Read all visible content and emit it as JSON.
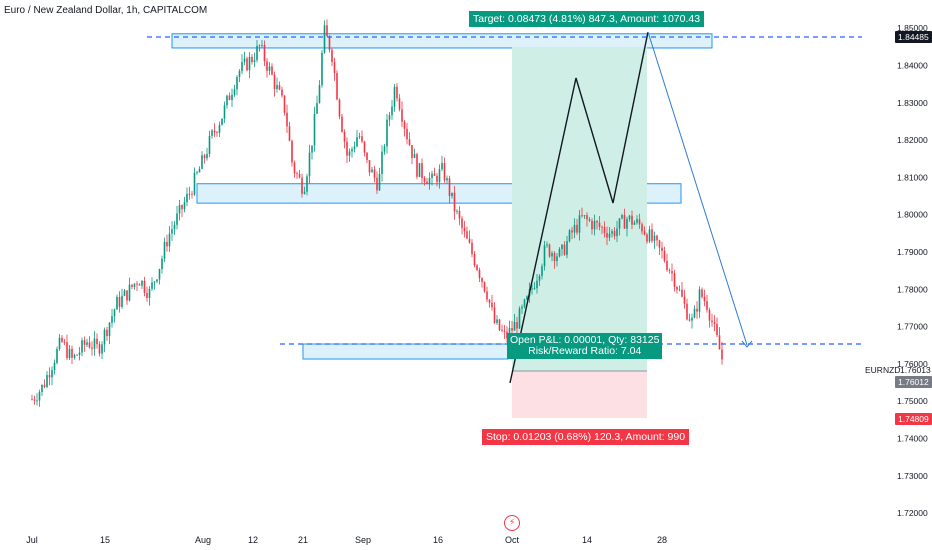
{
  "header": {
    "title": "Euro / New Zealand Dollar, 1h, CAPITALCOM"
  },
  "colors": {
    "up": "#089981",
    "down": "#f23645",
    "zone_fill": "#bfe6f6",
    "zone_stroke": "#2196f3",
    "target_fill": "#cfeee6",
    "stop_fill": "#fde0e3",
    "projection": "#131722",
    "projection2": "#2e7bd6"
  },
  "position": {
    "target_label": "Target: 0.08473 (4.81%) 847.3, Amount: 1070.43",
    "open_label_1": "Open P&L: 0.00001, Qty: 83125",
    "open_label_2": "Risk/Reward Ratio: 7.04",
    "stop_label": "Stop: 0.01203 (0.68%) 120.3, Amount: 990",
    "entry": 1.76012,
    "target": 1.84485,
    "stop": 1.74809
  },
  "axis_labels": {
    "price_1": "1.84485",
    "symbol": "EURNZD",
    "price_2": "1.76013",
    "price_3": "1.76012",
    "price_4": "1.74809"
  },
  "watermark_icon": "tradingview-logo-icon",
  "chart_data": {
    "type": "line",
    "title": "Euro / New Zealand Dollar, 1h, CAPITALCOM",
    "symbol": "EURNZD",
    "ylim": [
      1.716,
      1.853
    ],
    "y_ticks": [
      1.72,
      1.73,
      1.74,
      1.75,
      1.76,
      1.77,
      1.78,
      1.79,
      1.8,
      1.81,
      1.82,
      1.83,
      1.84,
      1.85
    ],
    "x_ticks": [
      "Jul",
      "15",
      "Aug",
      "12",
      "21",
      "Sep",
      "16",
      "Oct",
      "14",
      "28"
    ],
    "grid": false,
    "series": [
      {
        "values": [
          [
            0,
            1.7505
          ],
          [
            0.15,
            1.754
          ],
          [
            0.25,
            1.759
          ],
          [
            0.4,
            1.766
          ],
          [
            0.55,
            1.761
          ],
          [
            0.75,
            1.766
          ],
          [
            0.9,
            1.764
          ],
          [
            1.05,
            1.771
          ],
          [
            1.15,
            1.776
          ],
          [
            1.3,
            1.779
          ],
          [
            1.45,
            1.783
          ],
          [
            1.6,
            1.779
          ],
          [
            1.75,
            1.787
          ],
          [
            1.85,
            1.794
          ],
          [
            2.0,
            1.8
          ],
          [
            2.15,
            1.806
          ],
          [
            2.3,
            1.813
          ],
          [
            2.45,
            1.821
          ],
          [
            2.6,
            1.827
          ],
          [
            2.8,
            1.838
          ],
          [
            3.0,
            1.842
          ],
          [
            3.1,
            1.845
          ],
          [
            3.25,
            1.838
          ],
          [
            3.45,
            1.828
          ],
          [
            3.55,
            1.813
          ],
          [
            3.7,
            1.807
          ],
          [
            3.8,
            1.818
          ],
          [
            3.9,
            1.832
          ],
          [
            3.98,
            1.849
          ],
          [
            4.08,
            1.844
          ],
          [
            4.18,
            1.829
          ],
          [
            4.3,
            1.815
          ],
          [
            4.45,
            1.822
          ],
          [
            4.55,
            1.814
          ],
          [
            4.72,
            1.808
          ],
          [
            4.82,
            1.822
          ],
          [
            4.95,
            1.835
          ],
          [
            5.1,
            1.822
          ],
          [
            5.25,
            1.812
          ],
          [
            5.45,
            1.809
          ],
          [
            5.6,
            1.812
          ],
          [
            5.75,
            1.802
          ],
          [
            5.9,
            1.794
          ],
          [
            6.05,
            1.787
          ],
          [
            6.2,
            1.779
          ],
          [
            6.3,
            1.771
          ],
          [
            6.45,
            1.767
          ],
          [
            6.6,
            1.771
          ],
          [
            6.75,
            1.777
          ],
          [
            6.9,
            1.785
          ],
          [
            7.0,
            1.791
          ],
          [
            7.2,
            1.789
          ],
          [
            7.35,
            1.795
          ],
          [
            7.5,
            1.799
          ],
          [
            7.7,
            1.797
          ],
          [
            7.9,
            1.795
          ],
          [
            8.1,
            1.799
          ],
          [
            8.3,
            1.797
          ],
          [
            8.45,
            1.793
          ],
          [
            8.6,
            1.789
          ],
          [
            8.75,
            1.783
          ],
          [
            8.9,
            1.775
          ],
          [
            9.0,
            1.771
          ],
          [
            9.1,
            1.779
          ],
          [
            9.2,
            1.776
          ],
          [
            9.35,
            1.765
          ],
          [
            9.42,
            1.76
          ]
        ]
      }
    ],
    "zones": [
      {
        "y_top": 1.8485,
        "y_bottom": 1.8447
      },
      {
        "y_top": 1.8083,
        "y_bottom": 1.8031
      },
      {
        "y_top": 1.7663,
        "y_bottom": 1.7645
      }
    ],
    "levels": [
      1.8451,
      1.7665
    ],
    "projection": [
      [
        9.42,
        1.76
      ],
      [
        10.55,
        1.8335
      ],
      [
        11.1,
        1.8032
      ],
      [
        11.85,
        1.8451
      ],
      [
        13.5,
        1.7662
      ]
    ]
  }
}
